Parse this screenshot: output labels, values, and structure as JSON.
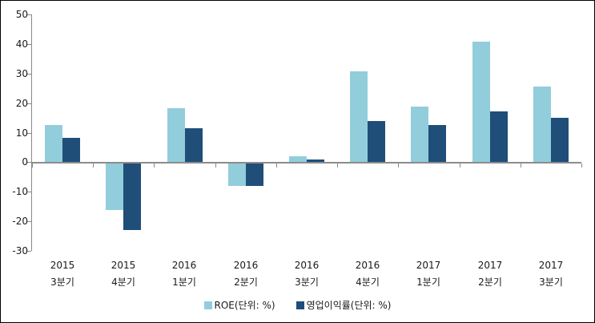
{
  "chart_data": {
    "type": "bar",
    "title": "",
    "xlabel": "",
    "ylabel": "",
    "categories": [
      "2015 3분기",
      "2015 4분기",
      "2016 1분기",
      "2016 2분기",
      "2016 3분기",
      "2016 4분기",
      "2017 1분기",
      "2017 2분기",
      "2017 3분기"
    ],
    "series": [
      {
        "name": "ROE(단위: %)",
        "color": "#92CDDC",
        "values": [
          12.6,
          -16.3,
          18.2,
          -8,
          2,
          30.8,
          18.7,
          40.8,
          25.5
        ]
      },
      {
        "name": "영업이익률(단위: %)",
        "color": "#1F4E79",
        "values": [
          8.2,
          -23,
          11.5,
          -8,
          1,
          13.9,
          12.5,
          17.2,
          15
        ]
      }
    ],
    "ylim": [
      -30,
      50
    ],
    "y_ticks": [
      50,
      40,
      30,
      20,
      10,
      0,
      -10,
      -20,
      -30
    ],
    "grid": false,
    "legend_position": "bottom",
    "axis_color": "#898989",
    "text_color": "#1a1a1a",
    "background_color": "#ffffff"
  }
}
